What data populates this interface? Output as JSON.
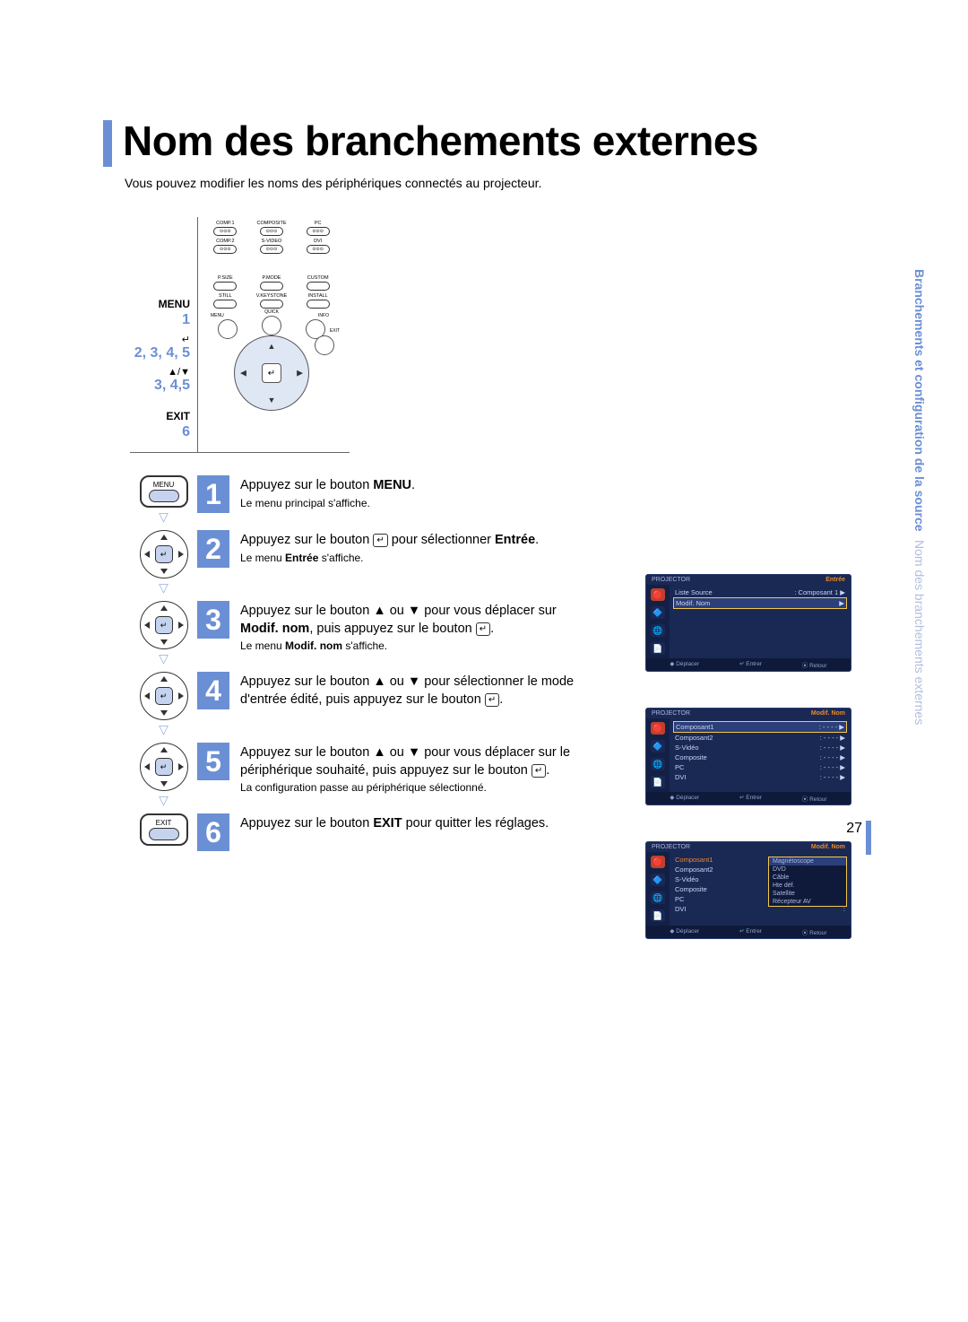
{
  "title": "Nom des branchements externes",
  "subtitle": "Vous pouvez modifier les noms des périphériques connectés au projecteur.",
  "page_number": "27",
  "side_tab": {
    "section": "Branchements et configuration de la source",
    "page_name": "Nom des branchements externes"
  },
  "colors": {
    "accent": "#6b8fd4",
    "accent_light": "#b0bedf",
    "osd_bg": "#1a2854",
    "osd_orange": "#e88a2a",
    "osd_gold": "#f2c84b"
  },
  "remote_labels": {
    "menu": "MENU",
    "menu_num": "1",
    "enter_nums": "2, 3, 4, 5",
    "arrows_sym": "▲/▼",
    "arrows_nums": "3, 4,5",
    "exit": "EXIT",
    "exit_num": "6"
  },
  "remote_buttons": {
    "row1": [
      "COMP.1",
      "COMPOSITE",
      "PC"
    ],
    "row2": [
      "COMP.2",
      "S-VIDEO",
      "DVI"
    ],
    "row3": [
      "P.SIZE",
      "P.MODE",
      "CUSTOM"
    ],
    "row4": [
      "STILL",
      "V.KEYSTONE",
      "INSTALL"
    ],
    "nav_corners": [
      "MENU",
      "QUICK",
      "INFO",
      "EXIT"
    ]
  },
  "steps": [
    {
      "num": "1",
      "icon": "menu-button",
      "main_pre": "Appuyez sur le bouton ",
      "main_bold": "MENU",
      "main_post": ".",
      "sub": "Le menu principal s'affiche."
    },
    {
      "num": "2",
      "icon": "dpad",
      "main_pre": "Appuyez sur le bouton ",
      "main_glyph": "↵",
      "main_post": " pour sélectionner ",
      "main_bold2": "Entrée",
      "main_post2": ".",
      "sub_pre": "Le menu ",
      "sub_bold": "Entrée",
      "sub_post": " s'affiche."
    },
    {
      "num": "3",
      "icon": "dpad",
      "main_pre": "Appuyez sur le bouton ▲ ou ▼ pour vous déplacer sur ",
      "main_bold": "Modif. nom",
      "main_post": ", puis appuyez sur le bouton ",
      "main_glyph2": "↵",
      "main_post2": ".",
      "sub_pre": "Le menu ",
      "sub_bold": "Modif. nom",
      "sub_post": " s'affiche."
    },
    {
      "num": "4",
      "icon": "dpad",
      "main": "Appuyez sur le bouton ▲ ou ▼ pour sélectionner le mode d'entrée édité, puis appuyez sur le bouton ",
      "main_glyph2": "↵",
      "main_post2": "."
    },
    {
      "num": "5",
      "icon": "dpad",
      "main": "Appuyez sur le bouton ▲ ou ▼ pour vous déplacer sur le périphérique souhaité, puis appuyez sur le bouton ",
      "main_glyph2": "↵",
      "main_post2": ".",
      "sub": "La configuration passe au périphérique sélectionné."
    },
    {
      "num": "6",
      "icon": "exit-button",
      "main_pre": "Appuyez sur le bouton ",
      "main_bold": "EXIT",
      "main_post": " pour quitter les réglages."
    }
  ],
  "osd_panels": [
    {
      "title": "Entrée",
      "brand": "PROJECTOR",
      "icons": [
        "🔴",
        "🔷",
        "🌐",
        "📄"
      ],
      "rows": [
        {
          "k": "Liste Source",
          "v": ": Composant 1 ▶",
          "hl": false
        },
        {
          "k": "Modif. Nom",
          "v": "▶",
          "hl": true
        }
      ],
      "foot": [
        "◆ Déplacer",
        "↵ Entrer",
        "⦿ Retour"
      ]
    },
    {
      "title": "Modif. Nom",
      "brand": "PROJECTOR",
      "icons": [
        "🔴",
        "🔷",
        "🌐",
        "📄"
      ],
      "rows": [
        {
          "k": "Composant1",
          "v": ": - - - -  ▶",
          "hl": true
        },
        {
          "k": "Composant2",
          "v": ": - - - -  ▶"
        },
        {
          "k": "S-Vidéo",
          "v": ": - - - -  ▶"
        },
        {
          "k": "Composite",
          "v": ": - - - -  ▶"
        },
        {
          "k": "PC",
          "v": ": - - - -  ▶"
        },
        {
          "k": "DVI",
          "v": ": - - - -  ▶"
        }
      ],
      "foot": [
        "◆ Déplacer",
        "↵ Entrer",
        "⦿ Retour"
      ]
    },
    {
      "title": "Modif. Nom",
      "brand": "PROJECTOR",
      "icons": [
        "🔴",
        "🔷",
        "🌐",
        "📄"
      ],
      "rows": [
        {
          "k": "Composant1",
          "v": ":",
          "sel": true
        },
        {
          "k": "Composant2",
          "v": ":"
        },
        {
          "k": "S-Vidéo",
          "v": ":"
        },
        {
          "k": "Composite",
          "v": ":"
        },
        {
          "k": "PC",
          "v": ":"
        },
        {
          "k": "DVI",
          "v": ":"
        }
      ],
      "submenu": [
        {
          "label": "Magnétoscope",
          "hl": true
        },
        {
          "label": "DVD"
        },
        {
          "label": "Câble"
        },
        {
          "label": "Hte déf."
        },
        {
          "label": "Satellite"
        },
        {
          "label": "Récepteur AV"
        }
      ],
      "foot": [
        "◆ Déplacer",
        "↵ Entrer",
        "⦿ Retour"
      ]
    }
  ]
}
